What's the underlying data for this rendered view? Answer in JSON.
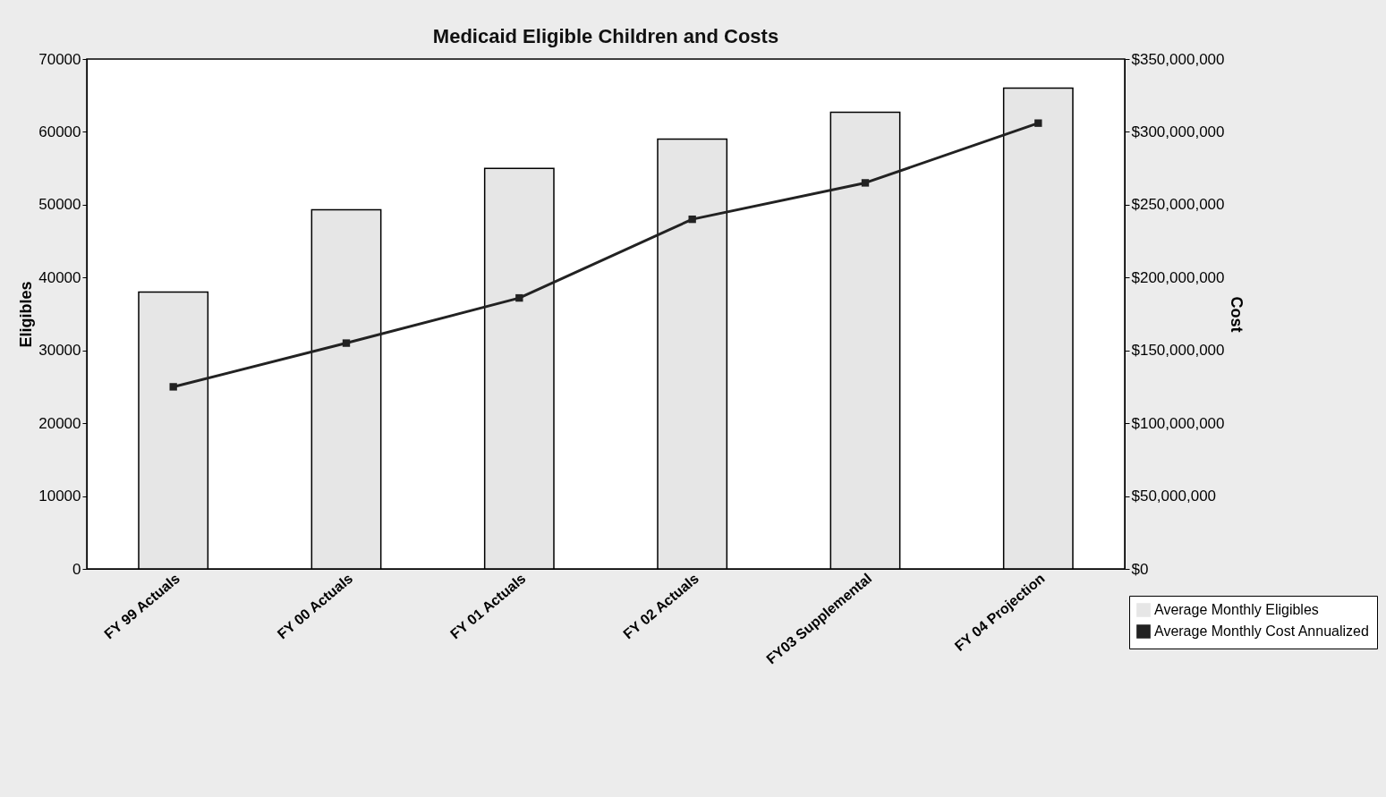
{
  "chart_data": {
    "type": "bar",
    "title": "Medicaid Eligible Children and Costs",
    "ylabel": "Eligibles",
    "y2label": "Cost",
    "categories": [
      "FY 99 Actuals",
      "FY 00 Actuals",
      "FY 01 Actuals",
      "FY 02 Actuals",
      "FY03 Supplemental",
      "FY 04 Projection"
    ],
    "series": [
      {
        "name": "Average Monthly Eligibles",
        "color": "#e6e6e6",
        "values": [
          38000,
          49300,
          55000,
          59000,
          62700,
          66000
        ]
      },
      {
        "name": "Average Monthly Cost Annualized",
        "type": "line",
        "axis": "y2",
        "color": "#222222",
        "values": [
          125000000,
          155000000,
          186000000,
          240000000,
          265000000,
          306000000
        ]
      }
    ],
    "ylim": [
      0,
      70000
    ],
    "yticks": [
      0,
      10000,
      20000,
      30000,
      40000,
      50000,
      60000,
      70000
    ],
    "y2lim": [
      0,
      350000000
    ],
    "y2ticks": [
      {
        "value": 0,
        "label": "$0"
      },
      {
        "value": 50000000,
        "label": "$50,000,000"
      },
      {
        "value": 100000000,
        "label": "$100,000,000"
      },
      {
        "value": 150000000,
        "label": "$150,000,000"
      },
      {
        "value": 200000000,
        "label": "$200,000,000"
      },
      {
        "value": 250000000,
        "label": "$250,000,000"
      },
      {
        "value": 300000000,
        "label": "$300,000,000"
      },
      {
        "value": 350000000,
        "label": "$350,000,000"
      }
    ],
    "marker": "square",
    "legend": "bottom right",
    "grid": false
  }
}
